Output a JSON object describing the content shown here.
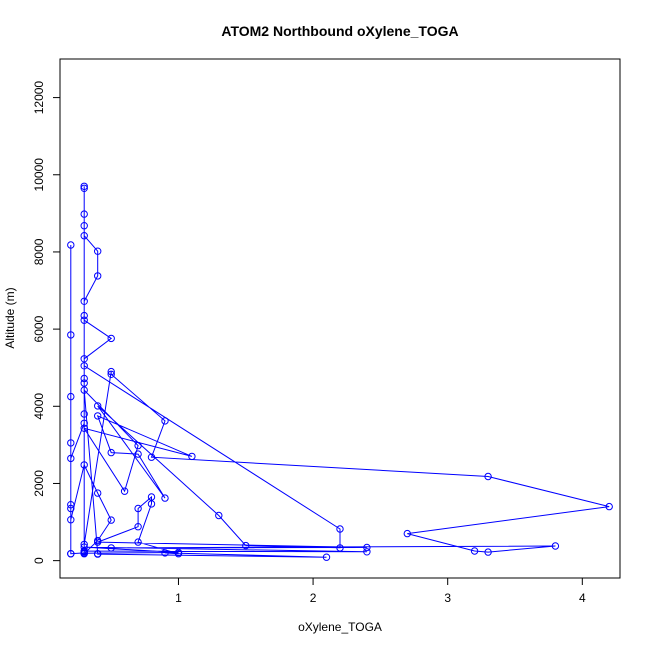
{
  "chart_data": {
    "type": "line",
    "title": "ATOM2 Northbound oXylene_TOGA",
    "xlabel": "oXylene_TOGA",
    "ylabel": "Altitude (m)",
    "xlim": [
      0.12,
      4.28
    ],
    "ylim": [
      -450,
      13000
    ],
    "x_ticks": [
      1,
      2,
      3,
      4
    ],
    "y_ticks": [
      0,
      2000,
      4000,
      6000,
      8000,
      10000,
      12000
    ],
    "grid": false,
    "color": "#0000ff",
    "series": [
      {
        "values": [
          [
            0.2,
            180
          ],
          [
            0.2,
            1350
          ],
          [
            0.2,
            3050
          ],
          [
            0.2,
            4250
          ],
          [
            0.2,
            5850
          ],
          [
            0.2,
            8180
          ],
          [
            0.2,
            1450
          ],
          [
            0.2,
            180
          ],
          [
            0.3,
            200
          ],
          [
            0.3,
            9700
          ],
          [
            0.3,
            9650
          ],
          [
            0.3,
            8980
          ],
          [
            0.3,
            8680
          ],
          [
            0.3,
            8420
          ],
          [
            0.4,
            8020
          ],
          [
            0.4,
            7380
          ],
          [
            0.3,
            6720
          ],
          [
            0.3,
            6350
          ],
          [
            0.3,
            6230
          ],
          [
            0.5,
            5760
          ],
          [
            0.3,
            5230
          ],
          [
            0.3,
            4600
          ],
          [
            0.3,
            4720
          ],
          [
            0.3,
            3800
          ],
          [
            0.3,
            3560
          ],
          [
            0.2,
            2650
          ],
          [
            0.2,
            1060
          ],
          [
            0.3,
            2480
          ],
          [
            0.4,
            1750
          ],
          [
            0.5,
            1050
          ],
          [
            0.4,
            520
          ],
          [
            0.3,
            180
          ],
          [
            0.3,
            230
          ],
          [
            0.3,
            420
          ],
          [
            0.5,
            4900
          ],
          [
            0.5,
            4830
          ],
          [
            0.9,
            3620
          ],
          [
            0.8,
            2680
          ],
          [
            3.3,
            2180
          ],
          [
            4.2,
            1400
          ],
          [
            2.7,
            700
          ],
          [
            3.2,
            250
          ],
          [
            3.3,
            220
          ],
          [
            3.8,
            380
          ],
          [
            0.5,
            330
          ],
          [
            2.4,
            340
          ],
          [
            0.4,
            480
          ],
          [
            0.7,
            880
          ],
          [
            0.7,
            1350
          ],
          [
            0.8,
            1650
          ],
          [
            0.8,
            1470
          ],
          [
            0.7,
            480
          ],
          [
            1.0,
            180
          ],
          [
            0.9,
            200
          ],
          [
            2.1,
            90
          ],
          [
            0.4,
            170
          ],
          [
            0.4,
            180
          ],
          [
            0.3,
            4420
          ],
          [
            0.7,
            2980
          ],
          [
            0.6,
            1800
          ],
          [
            0.3,
            3430
          ],
          [
            1.1,
            2700
          ],
          [
            0.4,
            3750
          ],
          [
            0.5,
            2800
          ],
          [
            0.7,
            2760
          ],
          [
            0.9,
            1620
          ],
          [
            0.4,
            4010
          ],
          [
            1.3,
            1170
          ],
          [
            1.5,
            390
          ],
          [
            2.2,
            330
          ],
          [
            2.2,
            820
          ],
          [
            0.3,
            5050
          ],
          [
            0.3,
            250
          ],
          [
            2.4,
            230
          ],
          [
            0.3,
            350
          ],
          [
            1.0,
            210
          ],
          [
            0.3,
            190
          ]
        ]
      }
    ]
  }
}
